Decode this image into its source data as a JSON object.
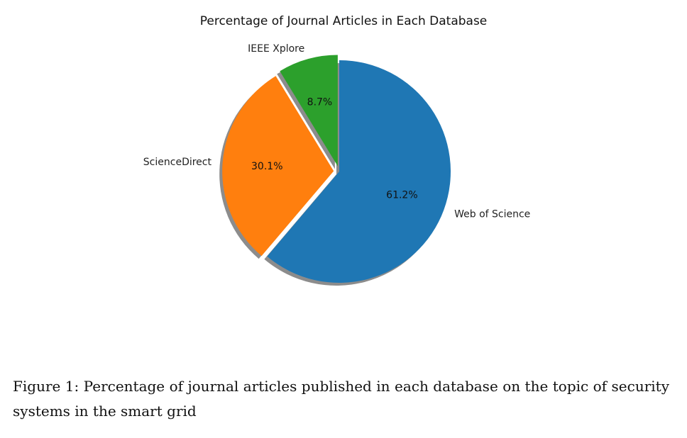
{
  "chart_data": {
    "type": "pie",
    "title": "Percentage of Journal Articles in Each Database",
    "slices": [
      {
        "label": "Web of Science",
        "value": 61.2,
        "pct_label": "61.2%",
        "color": "#1f77b4",
        "explode": 0
      },
      {
        "label": "ScienceDirect",
        "value": 30.1,
        "pct_label": "30.1%",
        "color": "#ff7f0e",
        "explode": 0.05
      },
      {
        "label": "IEEE Xplore",
        "value": 8.7,
        "pct_label": "8.7%",
        "color": "#2ca02c",
        "explode": 0.05
      }
    ],
    "start_angle_deg": 90,
    "direction": "clockwise",
    "shadow": true
  },
  "caption": {
    "text": "Figure 1: Percentage of journal articles published in each database on the topic of security systems in the smart grid"
  }
}
